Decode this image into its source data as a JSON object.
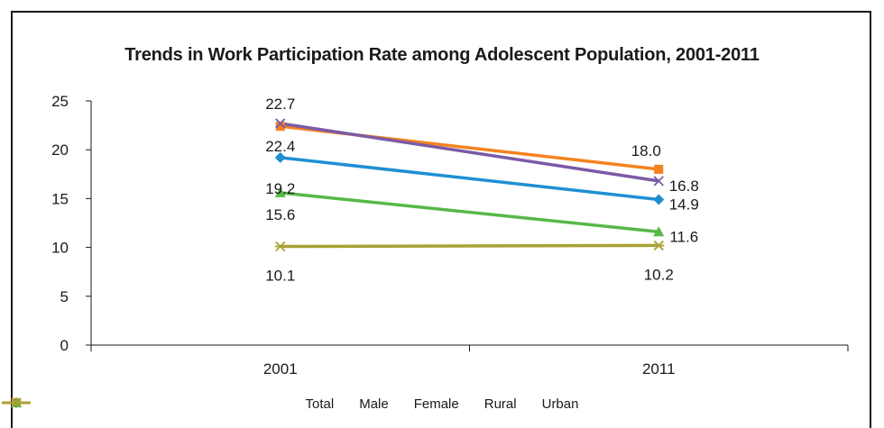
{
  "chart_data": {
    "type": "line",
    "title": "Trends in Work Participation Rate among Adolescent Population, 2001-2011",
    "categories": [
      "2001",
      "2011"
    ],
    "ylim": [
      0,
      25
    ],
    "yticks": [
      "0",
      "5",
      "10",
      "15",
      "20",
      "25"
    ],
    "grid": false,
    "legend_position": "bottom",
    "series": [
      {
        "name": "Total",
        "values": [
          19.2,
          14.9
        ],
        "labels": [
          "19.2",
          "14.9"
        ],
        "color": "#1f8fd3",
        "marker": "diamond"
      },
      {
        "name": "Male",
        "values": [
          22.4,
          18.0
        ],
        "labels": [
          "22.4",
          "18.0"
        ],
        "color": "#f58220",
        "marker": "square"
      },
      {
        "name": "Female",
        "values": [
          15.6,
          11.6
        ],
        "labels": [
          "15.6",
          "11.6"
        ],
        "color": "#56b947",
        "marker": "triangle"
      },
      {
        "name": "Rural",
        "values": [
          22.7,
          16.8
        ],
        "labels": [
          "22.7",
          "16.8"
        ],
        "color": "#7b5aa6",
        "marker": "x"
      },
      {
        "name": "Urban",
        "values": [
          10.1,
          10.2
        ],
        "labels": [
          "10.1",
          "10.2"
        ],
        "color": "#a9a235",
        "marker": "asterisk"
      }
    ]
  }
}
